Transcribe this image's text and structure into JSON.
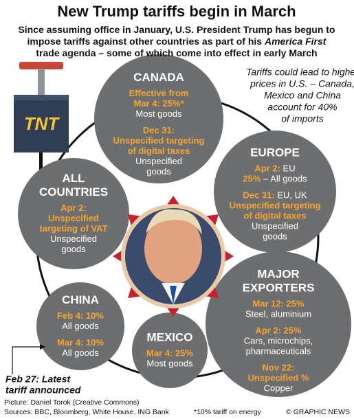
{
  "title": "New Trump tariffs begin in March",
  "subtitle": [
    [
      {
        "text": "Since assuming office in January, U.S. President Trump has begun to"
      }
    ],
    [
      {
        "text": "impose tariffs against other countries as part of his "
      },
      {
        "text": "America First",
        "italic": true
      }
    ],
    [
      {
        "text": "trade agenda – some of which come into effect in early March"
      }
    ]
  ],
  "note": [
    "Tariffs could lead to higher",
    "prices in U.S. – Canada,",
    "Mexico and China",
    "account for 40%",
    "of imports"
  ],
  "icon_label": "TNT",
  "circles": [
    {
      "name": [
        "CANADA"
      ],
      "entries": [
        [
          [
            {
              "text": "Effective from",
              "accent": true
            }
          ],
          [
            {
              "text": "Mar 4: 25%*",
              "accent": true
            }
          ],
          [
            {
              "text": "Most goods",
              "accent": false
            }
          ]
        ],
        [
          [
            {
              "text": "Dec 31:",
              "accent": true
            }
          ],
          [
            {
              "text": "Unspecified targeting",
              "accent": true
            }
          ],
          [
            {
              "text": "of digital taxes",
              "accent": true
            }
          ],
          [
            {
              "text": "Unspecified",
              "accent": false
            }
          ],
          [
            {
              "text": "goods",
              "accent": false
            }
          ]
        ]
      ]
    },
    {
      "name": [
        "EUROPE"
      ],
      "entries": [
        [
          [
            {
              "text": "Apr 2:",
              "accent": true
            },
            {
              "text": " EU",
              "accent": false
            }
          ],
          [
            {
              "text": "25%",
              "accent": true
            },
            {
              "text": " – All goods",
              "accent": false
            }
          ]
        ],
        [
          [
            {
              "text": "Dec 31:",
              "accent": true
            },
            {
              "text": " EU, UK",
              "accent": false
            }
          ],
          [
            {
              "text": "Unspecified targeting",
              "accent": true
            }
          ],
          [
            {
              "text": "of digital taxes",
              "accent": true
            }
          ],
          [
            {
              "text": "Unspecified",
              "accent": false
            }
          ],
          [
            {
              "text": "goods",
              "accent": false
            }
          ]
        ]
      ]
    },
    {
      "name": [
        "ALL",
        "COUNTRIES"
      ],
      "entries": [
        [
          [
            {
              "text": "Apr 2:",
              "accent": true
            }
          ],
          [
            {
              "text": "Unspecified",
              "accent": true
            }
          ],
          [
            {
              "text": "targeting of VAT",
              "accent": true
            }
          ],
          [
            {
              "text": "Unspecified",
              "accent": false
            }
          ],
          [
            {
              "text": "goods",
              "accent": false
            }
          ]
        ]
      ]
    },
    {
      "name": [
        "MAJOR",
        "EXPORTERS"
      ],
      "entries": [
        [
          [
            {
              "text": "Mar 12: 25%",
              "accent": true
            }
          ],
          [
            {
              "text": "Steel, aluminium",
              "accent": false
            }
          ]
        ],
        [
          [
            {
              "text": "Apr 2: 25%",
              "accent": true
            }
          ],
          [
            {
              "text": "Cars, microchips,",
              "accent": false
            }
          ],
          [
            {
              "text": "pharmaceuticals",
              "accent": false
            }
          ]
        ],
        [
          [
            {
              "text": "Nov 22:",
              "accent": true
            }
          ],
          [
            {
              "text": "Unspecified %",
              "accent": true
            }
          ],
          [
            {
              "text": "Copper",
              "accent": false
            }
          ]
        ]
      ]
    },
    {
      "name": [
        "CHINA"
      ],
      "entries": [
        [
          [
            {
              "text": "Feb 4: 10%",
              "accent": true
            }
          ],
          [
            {
              "text": "All goods",
              "accent": false
            }
          ]
        ],
        [
          [
            {
              "text": "Mar 4: 10%",
              "accent": true
            }
          ],
          [
            {
              "text": "All goods",
              "accent": false
            }
          ]
        ]
      ]
    },
    {
      "name": [
        "MEXICO"
      ],
      "entries": [
        [
          [
            {
              "text": "Mar 4: 25%",
              "accent": true
            }
          ],
          [
            {
              "text": "Most goods",
              "accent": false
            }
          ]
        ]
      ]
    }
  ],
  "callout": [
    "Feb 27: Latest",
    "tariff announced"
  ],
  "footer": {
    "picture": "Picture: Daniel Torok (Creative Commons)",
    "sources": "Sources: BBC, Bloomberg, White House, ING Bank",
    "footnote": "*10% tariff on energy",
    "credit": "© GRAPHIC NEWS"
  }
}
